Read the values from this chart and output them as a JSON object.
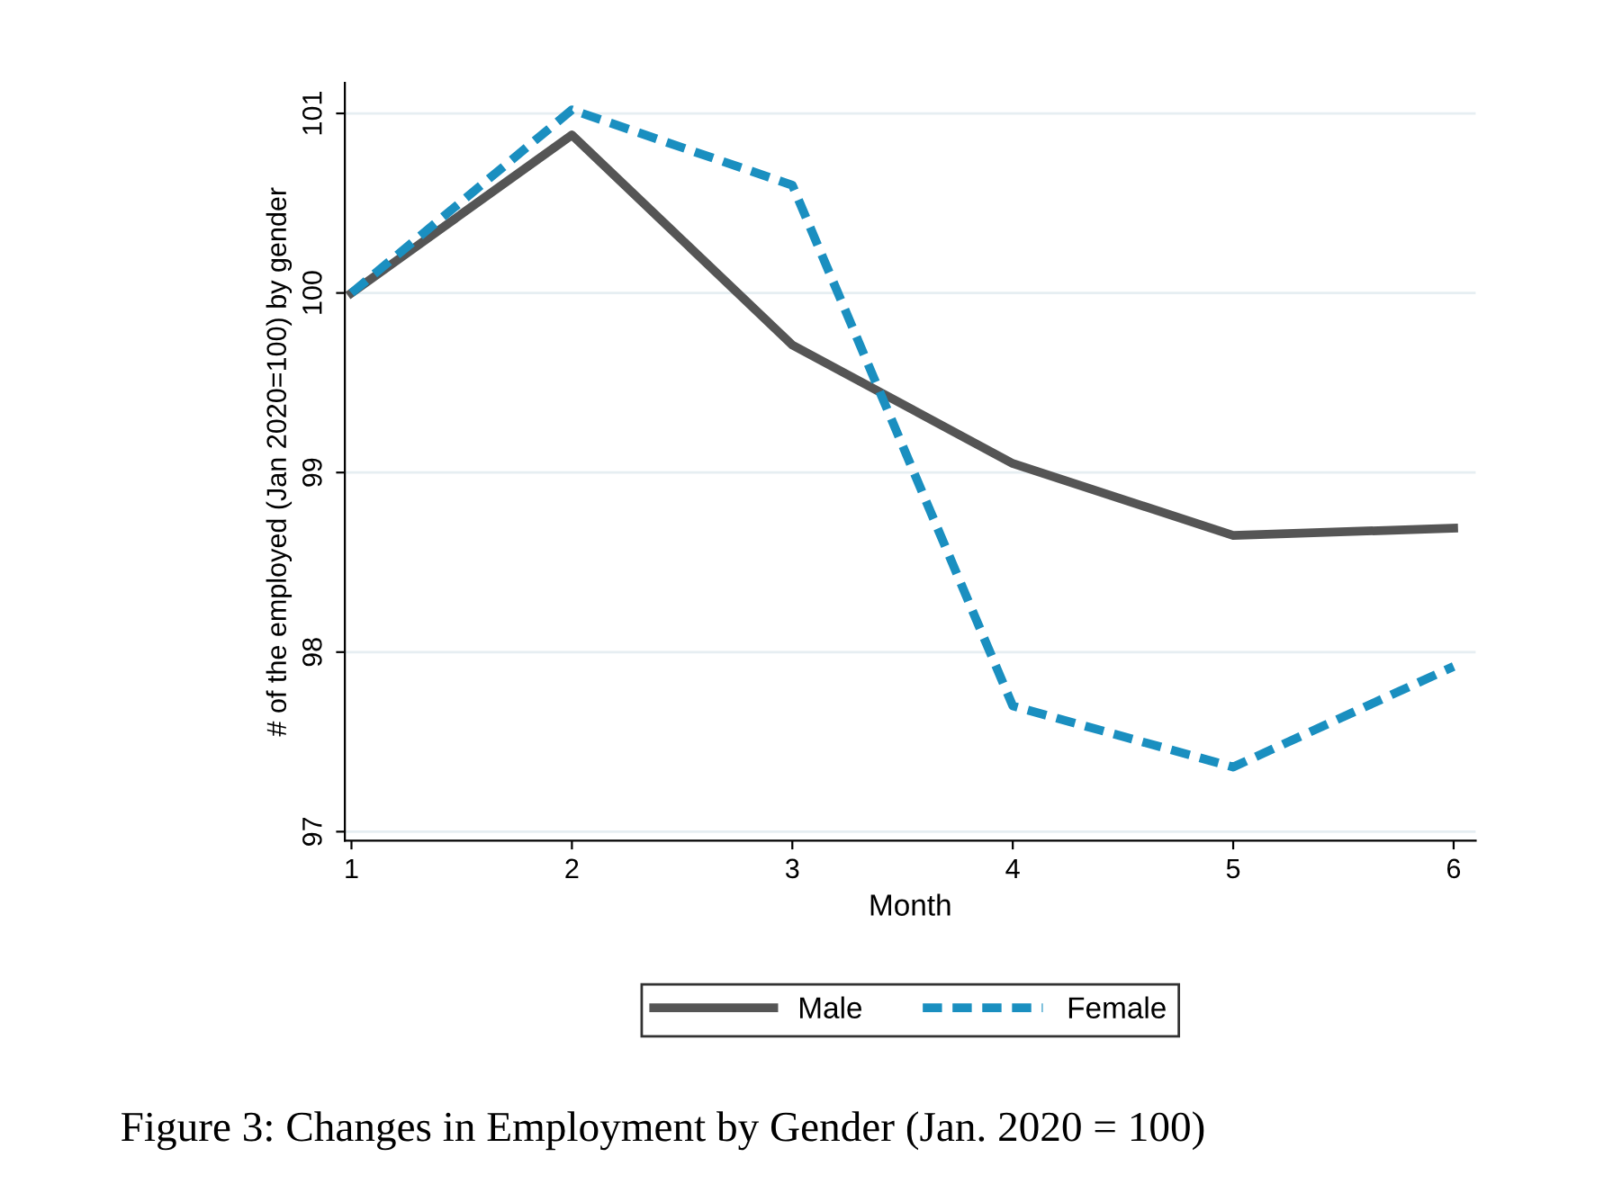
{
  "chart_data": {
    "type": "line",
    "xlabel": "Month",
    "ylabel": "# of the employed (Jan 2020=100) by gender",
    "x": [
      1,
      2,
      3,
      4,
      5,
      6
    ],
    "series": [
      {
        "name": "Male",
        "color": "#555555",
        "line_style": "solid",
        "values": [
          100,
          100.88,
          99.71,
          99.05,
          98.65,
          98.69
        ]
      },
      {
        "name": "Female",
        "color": "#1a8fc0",
        "line_style": "dashed",
        "values": [
          100,
          101.02,
          100.6,
          97.7,
          97.36,
          97.92
        ]
      }
    ],
    "xlim": [
      0.97,
      6.1
    ],
    "xticks": [
      1,
      2,
      3,
      4,
      5,
      6
    ],
    "ylim": [
      96.95,
      101.17
    ],
    "yticks": [
      97,
      98,
      99,
      100,
      101
    ],
    "grid": "y",
    "legend": "bottom",
    "marker": "none",
    "annotations": [
      "Figure 3: Changes in Employment by Gender (Jan. 2020 = 100)"
    ]
  }
}
